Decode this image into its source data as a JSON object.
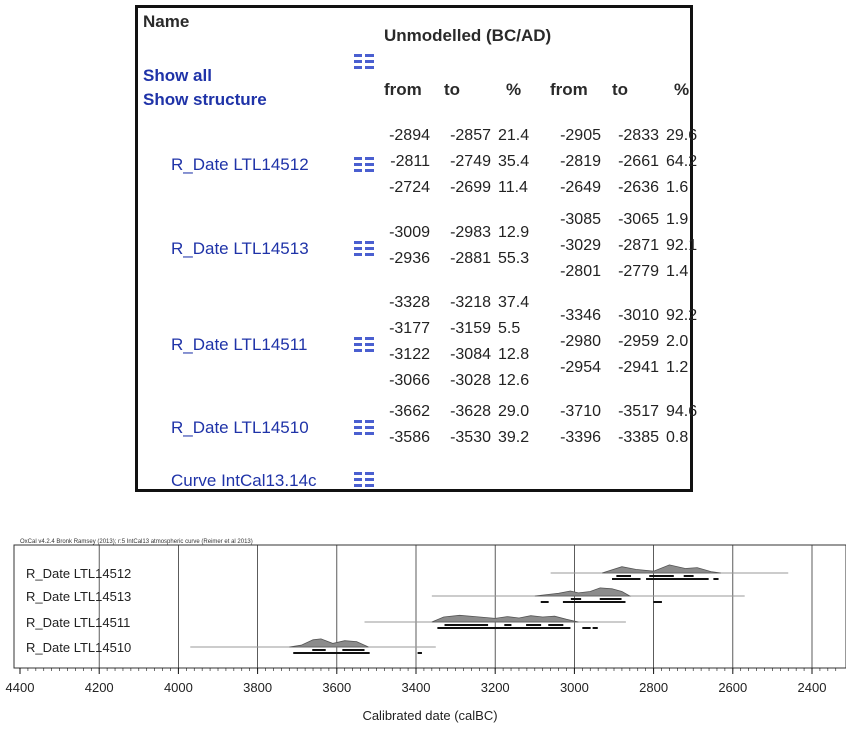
{
  "table": {
    "name_header": "Name",
    "title": "Unmodelled (BC/AD)",
    "show_all": "Show all",
    "show_structure": "Show structure",
    "col_from": "from",
    "col_to": "to",
    "col_pct": "%",
    "rows": [
      {
        "name": "R_Date LTL14512",
        "left": [
          [
            "-2894",
            "-2857",
            "21.4"
          ],
          [
            "-2811",
            "-2749",
            "35.4"
          ],
          [
            "-2724",
            "-2699",
            "11.4"
          ]
        ],
        "right": [
          [
            "-2905",
            "-2833",
            "29.6"
          ],
          [
            "-2819",
            "-2661",
            "64.2"
          ],
          [
            "-2649",
            "-2636",
            "1.6"
          ]
        ]
      },
      {
        "name": "R_Date LTL14513",
        "left": [
          [
            "-3009",
            "-2983",
            "12.9"
          ],
          [
            "-2936",
            "-2881",
            "55.3"
          ]
        ],
        "right": [
          [
            "-3085",
            "-3065",
            "1.9"
          ],
          [
            "-3029",
            "-2871",
            "92.1"
          ],
          [
            "-2801",
            "-2779",
            "1.4"
          ]
        ]
      },
      {
        "name": "R_Date LTL14511",
        "left": [
          [
            "-3328",
            "-3218",
            "37.4"
          ],
          [
            "-3177",
            "-3159",
            "5.5"
          ],
          [
            "-3122",
            "-3084",
            "12.8"
          ],
          [
            "-3066",
            "-3028",
            "12.6"
          ]
        ],
        "right": [
          [
            "-3346",
            "-3010",
            "92.2"
          ],
          [
            "-2980",
            "-2959",
            "2.0"
          ],
          [
            "-2954",
            "-2941",
            "1.2"
          ]
        ]
      },
      {
        "name": "R_Date LTL14510",
        "left": [
          [
            "-3662",
            "-3628",
            "29.0"
          ],
          [
            "-3586",
            "-3530",
            "39.2"
          ]
        ],
        "right": [
          [
            "-3710",
            "-3517",
            "94.6"
          ],
          [
            "-3396",
            "-3385",
            "0.8"
          ]
        ]
      }
    ],
    "curve_name": "Curve IntCal13.14c",
    "icon": "structure-grid-icon",
    "colors": {
      "link": "#1f33a8",
      "icon": "#4a5fd0",
      "border": "#111111"
    }
  },
  "plot": {
    "caption": "OxCal v4.2.4 Bronk Ramsey (2013); r:5 IntCal13 atmospheric curve (Reimer et al 2013)",
    "x_label": "Calibrated date (calBC)",
    "x_ticks": [
      "4400",
      "4200",
      "4000",
      "3800",
      "3600",
      "3400",
      "3200",
      "3000",
      "2800",
      "2600",
      "2400"
    ],
    "xlim": [
      4400,
      2330
    ],
    "row_labels": [
      "R_Date LTL14512",
      "R_Date LTL14513",
      "R_Date LTL14511",
      "R_Date LTL14510"
    ],
    "series": [
      {
        "name": "R_Date LTL14512",
        "full_range": [
          3060,
          2460
        ],
        "hpd95": [
          [
            2905,
            2833
          ],
          [
            2819,
            2661
          ],
          [
            2649,
            2636
          ]
        ],
        "hpd68": [
          [
            2894,
            2857
          ],
          [
            2811,
            2749
          ],
          [
            2724,
            2699
          ]
        ],
        "peaks": [
          [
            2930,
            0
          ],
          [
            2880,
            0.7
          ],
          [
            2845,
            0.4
          ],
          [
            2800,
            0.2
          ],
          [
            2760,
            0.9
          ],
          [
            2720,
            0.5
          ],
          [
            2690,
            0.6
          ],
          [
            2655,
            0.15
          ],
          [
            2630,
            0
          ]
        ]
      },
      {
        "name": "R_Date LTL14513",
        "full_range": [
          3360,
          2570
        ],
        "hpd95": [
          [
            3085,
            3065
          ],
          [
            3029,
            2871
          ],
          [
            2801,
            2779
          ]
        ],
        "hpd68": [
          [
            3009,
            2983
          ],
          [
            2936,
            2881
          ]
        ],
        "peaks": [
          [
            3100,
            0
          ],
          [
            3070,
            0.15
          ],
          [
            3040,
            0.3
          ],
          [
            3010,
            0.55
          ],
          [
            2990,
            0.35
          ],
          [
            2960,
            0.5
          ],
          [
            2935,
            0.9
          ],
          [
            2905,
            0.8
          ],
          [
            2880,
            0.5
          ],
          [
            2860,
            0
          ]
        ]
      },
      {
        "name": "R_Date LTL14511",
        "full_range": [
          3530,
          2870
        ],
        "hpd95": [
          [
            3346,
            3010
          ],
          [
            2980,
            2959
          ],
          [
            2954,
            2941
          ]
        ],
        "hpd68": [
          [
            3328,
            3218
          ],
          [
            3177,
            3159
          ],
          [
            3122,
            3084
          ],
          [
            3066,
            3028
          ]
        ],
        "peaks": [
          [
            3360,
            0
          ],
          [
            3330,
            0.55
          ],
          [
            3290,
            0.75
          ],
          [
            3250,
            0.6
          ],
          [
            3200,
            0.4
          ],
          [
            3170,
            0.6
          ],
          [
            3140,
            0.45
          ],
          [
            3110,
            0.7
          ],
          [
            3080,
            0.55
          ],
          [
            3050,
            0.65
          ],
          [
            3020,
            0.3
          ],
          [
            2990,
            0
          ]
        ]
      },
      {
        "name": "R_Date LTL14510",
        "full_range": [
          3970,
          3350
        ],
        "hpd95": [
          [
            3710,
            3517
          ],
          [
            3396,
            3385
          ]
        ],
        "hpd68": [
          [
            3662,
            3628
          ],
          [
            3586,
            3530
          ]
        ],
        "peaks": [
          [
            3720,
            0
          ],
          [
            3690,
            0.2
          ],
          [
            3660,
            0.8
          ],
          [
            3640,
            0.9
          ],
          [
            3610,
            0.4
          ],
          [
            3580,
            0.7
          ],
          [
            3550,
            0.6
          ],
          [
            3520,
            0
          ]
        ]
      }
    ],
    "colors": {
      "fill": "#8c8c8c",
      "stroke": "#555555",
      "bar": "#111111",
      "range": "#9a9a9a",
      "grid": "#333333"
    }
  }
}
